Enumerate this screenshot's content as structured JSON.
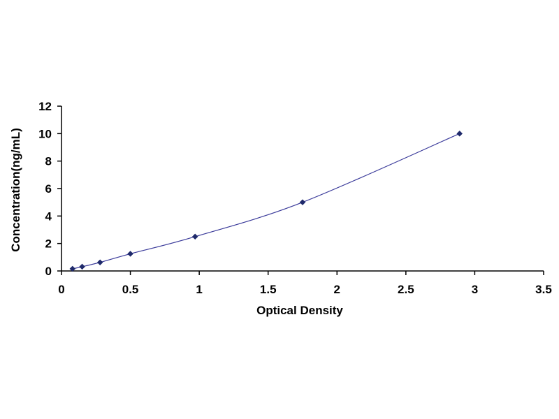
{
  "chart_data": {
    "type": "scatter",
    "title": "",
    "xlabel": "Optical Density",
    "ylabel": "Concentration(ng/mL)",
    "xlim": [
      0,
      3.5
    ],
    "ylim": [
      0,
      12
    ],
    "xticks": [
      0,
      0.5,
      1,
      1.5,
      2,
      2.5,
      3,
      3.5
    ],
    "xtick_labels": [
      "0",
      "0.5",
      "1",
      "1.5",
      "2",
      "2.5",
      "3",
      "3.5"
    ],
    "yticks": [
      0,
      2,
      4,
      6,
      8,
      10,
      12
    ],
    "ytick_labels": [
      "0",
      "2",
      "4",
      "6",
      "8",
      "10",
      "12"
    ],
    "grid": false,
    "legend": "none",
    "trendline": true,
    "series": [
      {
        "x": [
          0.08,
          0.15,
          0.28,
          0.5,
          0.97,
          1.75,
          2.89
        ],
        "y": [
          0.156,
          0.312,
          0.625,
          1.25,
          2.5,
          5,
          10
        ],
        "marker_color": "#1f2a6b",
        "line_color": "#3a3a9a"
      }
    ]
  }
}
